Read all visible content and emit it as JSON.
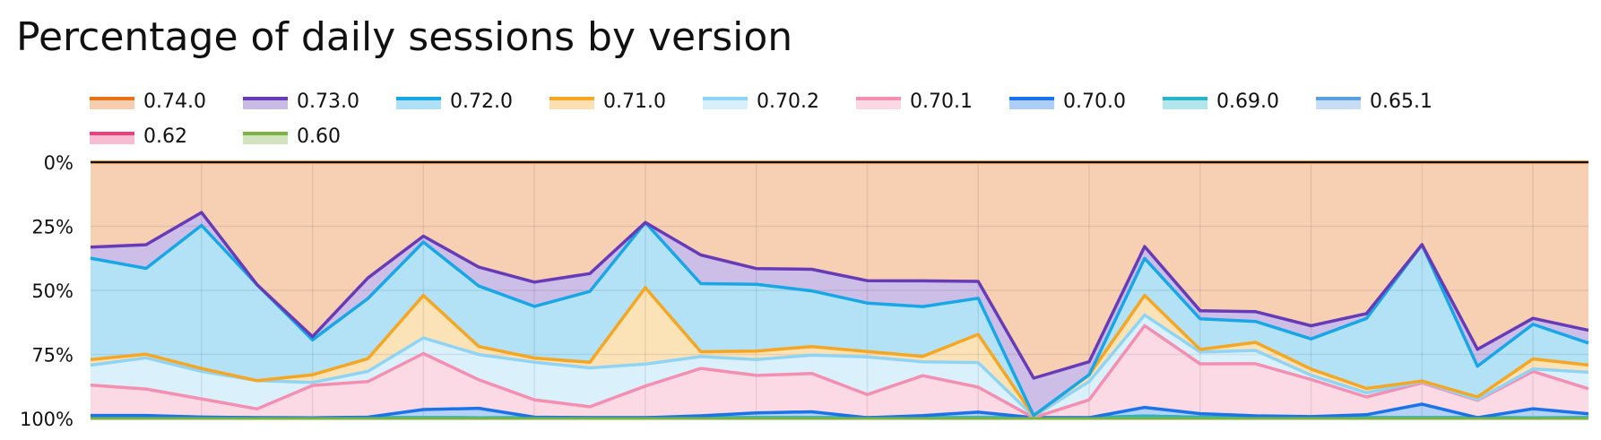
{
  "title": "Percentage of daily sessions by version",
  "chart_data": {
    "type": "area",
    "stacked": true,
    "title": "Percentage of daily sessions by version",
    "xlabel": "",
    "ylabel": "",
    "y_ticks": [
      "0%",
      "25%",
      "50%",
      "75%",
      "100%"
    ],
    "y_inverted": true,
    "ylim": [
      0,
      100
    ],
    "x": [
      1,
      2,
      3,
      4,
      5,
      6,
      7,
      8,
      9,
      10,
      11,
      12,
      13,
      14,
      15,
      16,
      17,
      18,
      19,
      20,
      21,
      22,
      23,
      24,
      25,
      26,
      27,
      28
    ],
    "x_tick_labels": [],
    "grid": true,
    "legend": "top",
    "series": [
      {
        "name": "0.60",
        "color": "#7cb342",
        "values": [
          0.3,
          0.3,
          0.3,
          0.3,
          0.3,
          0.3,
          0.3,
          0.3,
          0.3,
          0.3,
          0.3,
          0.3,
          0.3,
          0.3,
          0.3,
          0.3,
          0.3,
          0.3,
          0.3,
          1,
          0.5,
          0.3,
          0.3,
          0.3,
          0.3,
          0.3,
          0.3,
          0.3
        ]
      },
      {
        "name": "0.62",
        "color": "#ec407a",
        "values": [
          0,
          0,
          0,
          0,
          0,
          0,
          0,
          0,
          0,
          0,
          0,
          0,
          0,
          0,
          0,
          0,
          0,
          0,
          0,
          0,
          0,
          0,
          0,
          0,
          0,
          0,
          0,
          0
        ]
      },
      {
        "name": "0.65.1",
        "color": "#5c9fde",
        "values": [
          0,
          0,
          0,
          0,
          0,
          0,
          0,
          0,
          0,
          0,
          0,
          0,
          0,
          0,
          0,
          0,
          0,
          0,
          0,
          0,
          0,
          0,
          0,
          0,
          0,
          0,
          0,
          0
        ]
      },
      {
        "name": "0.69.0",
        "color": "#26b6c8",
        "values": [
          0,
          0,
          0,
          0,
          0,
          0,
          0,
          0,
          0,
          0,
          0,
          0,
          0,
          0,
          0,
          0,
          0,
          0,
          0,
          0,
          0,
          0,
          0,
          0,
          0,
          0,
          0,
          0
        ]
      },
      {
        "name": "0.70.0",
        "color": "#1a73e8",
        "values": [
          0.9,
          0.9,
          0.2,
          0,
          0,
          0.2,
          3.2,
          3.8,
          0.2,
          0,
          0,
          0.7,
          1.9,
          2.3,
          0,
          0.8,
          2.1,
          0,
          0,
          3.7,
          1.4,
          0.7,
          0.4,
          1.1,
          5.3,
          0,
          3.6,
          1.5
        ]
      },
      {
        "name": "0.70.1",
        "color": "#f48fb1",
        "values": [
          11.8,
          10.4,
          6.5,
          3.2,
          13,
          13.7,
          21.9,
          11.5,
          6.7,
          4.1,
          11.8,
          17.7,
          14.5,
          14.7,
          9,
          15.5,
          9.5,
          0,
          6.4,
          34.5,
          19.5,
          19.7,
          13.8,
          6.6,
          8.3,
          6.8,
          14.9,
          9.4
        ]
      },
      {
        "name": "0.70.2",
        "color": "#90d4f5",
        "values": [
          7.8,
          12.3,
          9.8,
          10.3,
          1.2,
          3.9,
          6.1,
          10.2,
          14.4,
          14.6,
          8.2,
          4.4,
          6.1,
          7.1,
          14.6,
          5.4,
          9.3,
          0.5,
          6.6,
          4.5,
          4.6,
          5,
          1.6,
          1.6,
          0.5,
          0.3,
          1,
          6.2
        ]
      },
      {
        "name": "0.71.0",
        "color": "#f5a623",
        "values": [
          2.2,
          1.4,
          1,
          0,
          3.1,
          4.9,
          16.6,
          3.2,
          1.6,
          2.1,
          28.5,
          1.8,
          3.3,
          3.3,
          2.1,
          2.1,
          10.7,
          0.2,
          2.4,
          8.3,
          1,
          3.1,
          2.3,
          1.6,
          0.2,
          1,
          4,
          2.7
        ]
      },
      {
        "name": "0.72.0",
        "color": "#17a7e6",
        "values": [
          39.5,
          33.8,
          51,
          35,
          14,
          23.1,
          20.9,
          24.4,
          19.8,
          26.6,
          24.3,
          25.4,
          25.9,
          21.4,
          18.8,
          19.3,
          13.7,
          0.2,
          0,
          15.6,
          12,
          7.9,
          11.2,
          26.1,
          53.1,
          12,
          13.8,
          8.3
        ]
      },
      {
        "name": "0.73.0",
        "color": "#673ab7",
        "values": [
          4.3,
          9.3,
          4.6,
          0,
          1.3,
          7.9,
          2.3,
          7.6,
          9.3,
          6.7,
          0,
          10.7,
          6.1,
          8.3,
          8.7,
          10,
          6.4,
          14.6,
          4.7,
          5,
          3.2,
          3.7,
          4.9,
          1.8,
          0,
          6.6,
          2.4,
          4.8
        ]
      },
      {
        "name": "0.74.0",
        "color": "#e8711a",
        "values": [
          33.1,
          32.5,
          17.9,
          44.6,
          70.2,
          44.5,
          28.9,
          42.3,
          46,
          41.8,
          22.5,
          34.6,
          41.2,
          41.2,
          46,
          46,
          45.2,
          84.7,
          71.7,
          35.6,
          58.1,
          56.5,
          60.8,
          56.4,
          32.1,
          73,
          62.3,
          63.3
        ]
      }
    ]
  }
}
